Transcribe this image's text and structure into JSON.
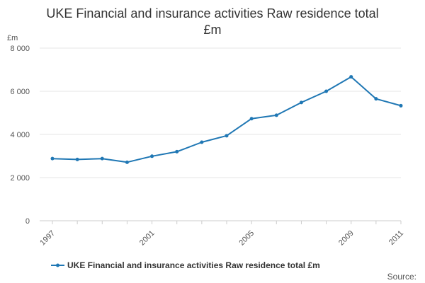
{
  "title_line1": "UKE Financial and insurance activities Raw residence total",
  "title_line2": "£m",
  "source_label": "Source:",
  "chart_data": {
    "type": "line",
    "title": "UKE Financial and insurance activities Raw residence total £m",
    "ylabel": "£m",
    "xlabel": "",
    "x": [
      1997,
      1998,
      1999,
      2000,
      2001,
      2002,
      2003,
      2004,
      2005,
      2006,
      2007,
      2008,
      2009,
      2010,
      2011
    ],
    "x_tick_labels": [
      "1997",
      "2001",
      "2005",
      "2009",
      "2011"
    ],
    "y_tick_labels": [
      "0",
      "2 000",
      "4 000",
      "6 000",
      "8 000"
    ],
    "y_ticks": [
      0,
      2000,
      4000,
      6000,
      8000
    ],
    "ylim": [
      0,
      8000
    ],
    "grid": true,
    "legend_position": "bottom",
    "series": [
      {
        "name": "UKE Financial and insurance activities Raw residence total £m",
        "color": "#1f77b4",
        "values": [
          2880,
          2840,
          2880,
          2710,
          2990,
          3200,
          3640,
          3940,
          4730,
          4890,
          5480,
          6000,
          6670,
          5650,
          5330
        ]
      }
    ]
  }
}
